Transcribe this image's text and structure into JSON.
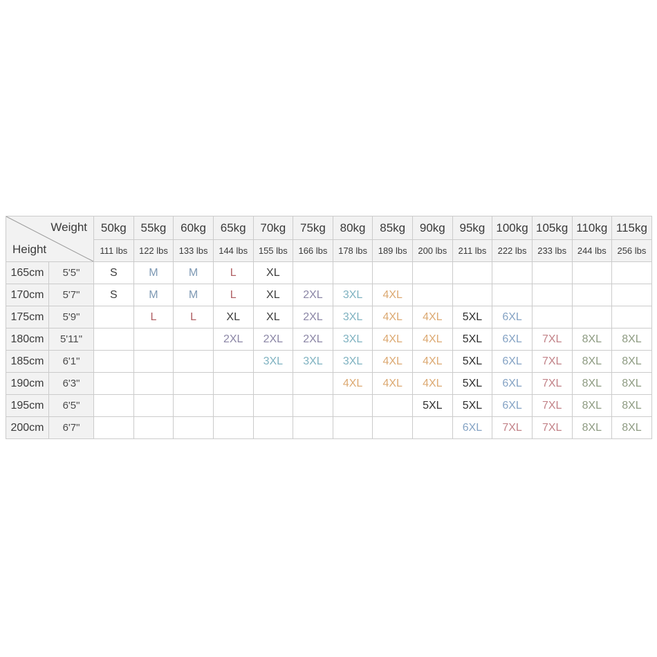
{
  "page": {
    "background": "#ffffff"
  },
  "table": {
    "corner": {
      "weight_label": "Weight",
      "height_label": "Height"
    },
    "weights_kg": [
      "50kg",
      "55kg",
      "60kg",
      "65kg",
      "70kg",
      "75kg",
      "80kg",
      "85kg",
      "90kg",
      "95kg",
      "100kg",
      "105kg",
      "110kg",
      "115kg"
    ],
    "weights_lbs": [
      "111 lbs",
      "122 lbs",
      "133 lbs",
      "144 lbs",
      "155 lbs",
      "166 lbs",
      "178 lbs",
      "189 lbs",
      "200 lbs",
      "211 lbs",
      "222 lbs",
      "233 lbs",
      "244 lbs",
      "256 lbs"
    ],
    "rows": [
      {
        "cm": "165cm",
        "ft": "5'5\"",
        "sizes": [
          "S",
          "M",
          "M",
          "L",
          "XL",
          "",
          "",
          "",
          "",
          "",
          "",
          "",
          "",
          ""
        ]
      },
      {
        "cm": "170cm",
        "ft": "5'7\"",
        "sizes": [
          "S",
          "M",
          "M",
          "L",
          "XL",
          "2XL",
          "3XL",
          "4XL",
          "",
          "",
          "",
          "",
          "",
          ""
        ]
      },
      {
        "cm": "175cm",
        "ft": "5'9\"",
        "sizes": [
          "",
          "L",
          "L",
          "XL",
          "XL",
          "2XL",
          "3XL",
          "4XL",
          "4XL",
          "5XL",
          "6XL",
          "",
          "",
          ""
        ]
      },
      {
        "cm": "180cm",
        "ft": "5'11\"",
        "sizes": [
          "",
          "",
          "",
          "2XL",
          "2XL",
          "2XL",
          "3XL",
          "4XL",
          "4XL",
          "5XL",
          "6XL",
          "7XL",
          "8XL",
          "8XL"
        ]
      },
      {
        "cm": "185cm",
        "ft": "6'1\"",
        "sizes": [
          "",
          "",
          "",
          "",
          "3XL",
          "3XL",
          "3XL",
          "4XL",
          "4XL",
          "5XL",
          "6XL",
          "7XL",
          "8XL",
          "8XL"
        ]
      },
      {
        "cm": "190cm",
        "ft": "6'3\"",
        "sizes": [
          "",
          "",
          "",
          "",
          "",
          "",
          "4XL",
          "4XL",
          "4XL",
          "5XL",
          "6XL",
          "7XL",
          "8XL",
          "8XL"
        ]
      },
      {
        "cm": "195cm",
        "ft": "6'5\"",
        "sizes": [
          "",
          "",
          "",
          "",
          "",
          "",
          "",
          "",
          "5XL",
          "5XL",
          "6XL",
          "7XL",
          "8XL",
          "8XL"
        ]
      },
      {
        "cm": "200cm",
        "ft": "6'7\"",
        "sizes": [
          "",
          "",
          "",
          "",
          "",
          "",
          "",
          "",
          "",
          "6XL",
          "7XL",
          "7XL",
          "8XL",
          "8XL"
        ]
      }
    ],
    "size_colors": {
      "S": "#3d3d3d",
      "M": "#7e99b4",
      "L": "#b05f63",
      "XL": "#3d3d3d",
      "2XL": "#8b86a6",
      "3XL": "#7fb2c1",
      "4XL": "#dca972",
      "5XL": "#2f2f2f",
      "6XL": "#85a3c4",
      "7XL": "#c28288",
      "8XL": "#8e9b82"
    },
    "styles": {
      "header_bg": "#f2f2f2",
      "grid_line": "#cbcbcb",
      "diagonal_line": "#9a9a9a",
      "text": "#3a3a3a"
    }
  },
  "chart_data": {
    "type": "table",
    "title": "Height / Weight size chart",
    "columns_kg": [
      "50kg",
      "55kg",
      "60kg",
      "65kg",
      "70kg",
      "75kg",
      "80kg",
      "85kg",
      "90kg",
      "95kg",
      "100kg",
      "105kg",
      "110kg",
      "115kg"
    ],
    "columns_lbs": [
      "111 lbs",
      "122 lbs",
      "133 lbs",
      "144 lbs",
      "155 lbs",
      "166 lbs",
      "178 lbs",
      "189 lbs",
      "200 lbs",
      "211 lbs",
      "222 lbs",
      "233 lbs",
      "244 lbs",
      "256 lbs"
    ],
    "row_labels_cm": [
      "165cm",
      "170cm",
      "175cm",
      "180cm",
      "185cm",
      "190cm",
      "195cm",
      "200cm"
    ],
    "row_labels_ft": [
      "5'5\"",
      "5'7\"",
      "5'9\"",
      "5'11\"",
      "6'1\"",
      "6'3\"",
      "6'5\"",
      "6'7\""
    ],
    "cells": [
      [
        "S",
        "M",
        "M",
        "L",
        "XL",
        "",
        "",
        "",
        "",
        "",
        "",
        "",
        "",
        ""
      ],
      [
        "S",
        "M",
        "M",
        "L",
        "XL",
        "2XL",
        "3XL",
        "4XL",
        "",
        "",
        "",
        "",
        "",
        ""
      ],
      [
        "",
        "L",
        "L",
        "XL",
        "XL",
        "2XL",
        "3XL",
        "4XL",
        "4XL",
        "5XL",
        "6XL",
        "",
        "",
        ""
      ],
      [
        "",
        "",
        "",
        "2XL",
        "2XL",
        "2XL",
        "3XL",
        "4XL",
        "4XL",
        "5XL",
        "6XL",
        "7XL",
        "8XL",
        "8XL"
      ],
      [
        "",
        "",
        "",
        "",
        "3XL",
        "3XL",
        "3XL",
        "4XL",
        "4XL",
        "5XL",
        "6XL",
        "7XL",
        "8XL",
        "8XL"
      ],
      [
        "",
        "",
        "",
        "",
        "",
        "",
        "4XL",
        "4XL",
        "4XL",
        "5XL",
        "6XL",
        "7XL",
        "8XL",
        "8XL"
      ],
      [
        "",
        "",
        "",
        "",
        "",
        "",
        "",
        "",
        "5XL",
        "5XL",
        "6XL",
        "7XL",
        "8XL",
        "8XL"
      ],
      [
        "",
        "",
        "",
        "",
        "",
        "",
        "",
        "",
        "",
        "6XL",
        "7XL",
        "7XL",
        "8XL",
        "8XL"
      ]
    ]
  }
}
